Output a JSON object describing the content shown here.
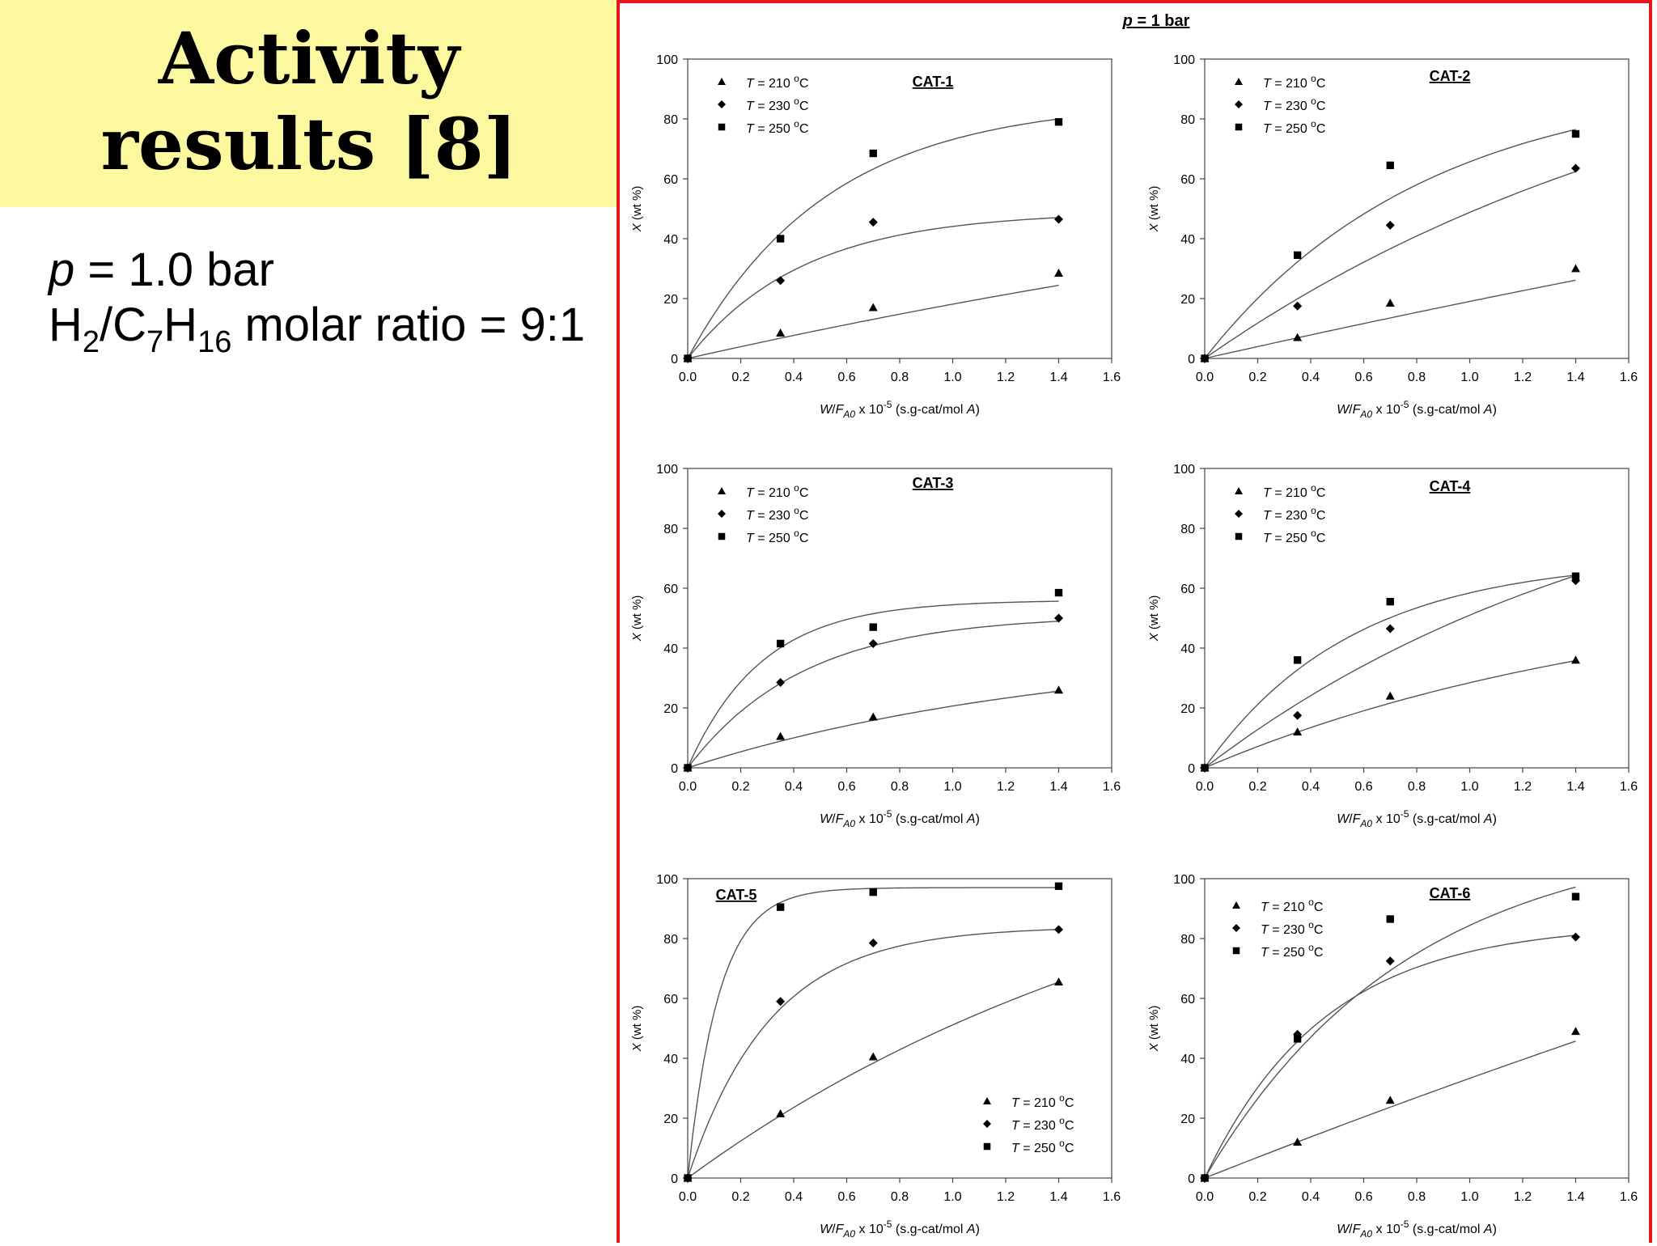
{
  "slide": {
    "title_line1": "Activity",
    "title_line2": "results [8]",
    "param_p_symbol": "p",
    "param_p_rest": " = 1.0 bar",
    "ratio_h": "H",
    "ratio_h_sub": "2",
    "ratio_c": "/C",
    "ratio_c_sub": "7",
    "ratio_h2": "H",
    "ratio_h2_sub": "16",
    "ratio_rest": " molar ratio = 9:1"
  },
  "figure": {
    "heading_symbol": "p",
    "heading_rest": " = 1 bar"
  },
  "colors": {
    "frame": "#e4161b",
    "title_bg": "#fbf8a0",
    "ink": "#000000",
    "axis": "#444444"
  },
  "chart_data": [
    {
      "type": "scatter",
      "title": "CAT-1",
      "xlabel": "W/FA0 x 10-5 (s.g-cat/mol A)",
      "ylabel": "X (wt %)",
      "xlim": [
        0,
        1.6
      ],
      "ylim": [
        0,
        100
      ],
      "xticks": [
        "0.0",
        "0.2",
        "0.4",
        "0.6",
        "0.8",
        "1.0",
        "1.2",
        "1.4",
        "1.6"
      ],
      "yticks": [
        "0",
        "20",
        "40",
        "60",
        "80",
        "100"
      ],
      "legend": "top-left",
      "x": [
        0,
        0.35,
        0.7,
        1.4
      ],
      "series": [
        {
          "name": "T = 210 °C",
          "marker": "triangle",
          "values": [
            0,
            8.5,
            17,
            28.5
          ],
          "fit_k": 0.2,
          "fit_max": 100
        },
        {
          "name": "T = 230 °C",
          "marker": "diamond",
          "values": [
            0,
            26,
            45.5,
            46.5
          ],
          "fit_k": 2.3,
          "fit_max": 49
        },
        {
          "name": "T = 250 °C",
          "marker": "square",
          "values": [
            0,
            40,
            68.5,
            79
          ],
          "fit_k": 1.9,
          "fit_max": 86
        }
      ]
    },
    {
      "type": "scatter",
      "title": "CAT-2",
      "xlabel": "W/FA0 x 10-5 (s.g-cat/mol A)",
      "ylabel": "X (wt %)",
      "xlim": [
        0,
        1.6
      ],
      "ylim": [
        0,
        100
      ],
      "xticks": [
        "0.0",
        "0.2",
        "0.4",
        "0.6",
        "0.8",
        "1.0",
        "1.2",
        "1.4",
        "1.6"
      ],
      "yticks": [
        "0",
        "20",
        "40",
        "60",
        "80",
        "100"
      ],
      "legend": "top-left",
      "x": [
        0,
        0.35,
        0.7,
        1.4
      ],
      "series": [
        {
          "name": "T = 210 °C",
          "marker": "triangle",
          "values": [
            0,
            7,
            18.5,
            30
          ],
          "fit_k": 0.1,
          "fit_max": 200
        },
        {
          "name": "T = 230 °C",
          "marker": "diamond",
          "values": [
            0,
            17.5,
            44.5,
            63.5
          ],
          "fit_k": 0.5,
          "fit_max": 124
        },
        {
          "name": "T = 250 °C",
          "marker": "square",
          "values": [
            0,
            34.5,
            64.5,
            75
          ],
          "fit_k": 1.2,
          "fit_max": 94
        }
      ]
    },
    {
      "type": "scatter",
      "title": "CAT-3",
      "xlabel": "W/FA0 x 10-5 (s.g-cat/mol A)",
      "ylabel": "X (wt %)",
      "xlim": [
        0,
        1.6
      ],
      "ylim": [
        0,
        100
      ],
      "xticks": [
        "0.0",
        "0.2",
        "0.4",
        "0.6",
        "0.8",
        "1.0",
        "1.2",
        "1.4",
        "1.6"
      ],
      "yticks": [
        "0",
        "20",
        "40",
        "60",
        "80",
        "100"
      ],
      "legend": "top-left",
      "x": [
        0,
        0.35,
        0.7,
        1.4
      ],
      "series": [
        {
          "name": "T = 210 °C",
          "marker": "triangle",
          "values": [
            0,
            10.5,
            17,
            26
          ],
          "fit_k": 0.7,
          "fit_max": 41
        },
        {
          "name": "T = 230 °C",
          "marker": "diamond",
          "values": [
            0,
            28.5,
            41.5,
            50
          ],
          "fit_k": 2.3,
          "fit_max": 51
        },
        {
          "name": "T = 250 °C",
          "marker": "square",
          "values": [
            0,
            41.5,
            47,
            58.5
          ],
          "fit_k": 3.6,
          "fit_max": 56
        }
      ]
    },
    {
      "type": "scatter",
      "title": "CAT-4",
      "xlabel": "W/FA0 x 10-5 (s.g-cat/mol A)",
      "ylabel": "X (wt %)",
      "xlim": [
        0,
        1.6
      ],
      "ylim": [
        0,
        100
      ],
      "xticks": [
        "0.0",
        "0.2",
        "0.4",
        "0.6",
        "0.8",
        "1.0",
        "1.2",
        "1.4",
        "1.6"
      ],
      "yticks": [
        "0",
        "20",
        "40",
        "60",
        "80",
        "100"
      ],
      "legend": "top-left",
      "x": [
        0,
        0.35,
        0.7,
        1.4
      ],
      "series": [
        {
          "name": "T = 210 °C",
          "marker": "triangle",
          "values": [
            0,
            12,
            24,
            36
          ],
          "fit_k": 0.6,
          "fit_max": 63
        },
        {
          "name": "T = 230 °C",
          "marker": "diamond",
          "values": [
            0,
            17.5,
            46.5,
            62.5
          ],
          "fit_k": 0.6,
          "fit_max": 113
        },
        {
          "name": "T = 250 °C",
          "marker": "square",
          "values": [
            0,
            36,
            55.5,
            64
          ],
          "fit_k": 1.8,
          "fit_max": 70
        }
      ]
    },
    {
      "type": "scatter",
      "title": "CAT-5",
      "xlabel": "W/FA0 x 10-5 (s.g-cat/mol A)",
      "ylabel": "X (wt %)",
      "xlim": [
        0,
        1.6
      ],
      "ylim": [
        0,
        100
      ],
      "xticks": [
        "0.0",
        "0.2",
        "0.4",
        "0.6",
        "0.8",
        "1.0",
        "1.2",
        "1.4",
        "1.6"
      ],
      "yticks": [
        "0",
        "20",
        "40",
        "60",
        "80",
        "100"
      ],
      "legend": "bottom-right",
      "x": [
        0,
        0.35,
        0.7,
        1.4
      ],
      "series": [
        {
          "name": "T = 210 °C",
          "marker": "triangle",
          "values": [
            0,
            21.5,
            40.5,
            65.5
          ],
          "fit_k": 0.5,
          "fit_max": 130
        },
        {
          "name": "T = 230 °C",
          "marker": "diamond",
          "values": [
            0,
            59,
            78.5,
            83
          ],
          "fit_k": 3.2,
          "fit_max": 84
        },
        {
          "name": "T = 250 °C",
          "marker": "square",
          "values": [
            0,
            90.5,
            95.5,
            97.5
          ],
          "fit_k": 8.5,
          "fit_max": 97
        }
      ]
    },
    {
      "type": "scatter",
      "title": "CAT-6",
      "xlabel": "W/FA0 x 10-5 (s.g-cat/mol A)",
      "ylabel": "X (wt %)",
      "xlim": [
        0,
        1.6
      ],
      "ylim": [
        0,
        100
      ],
      "xticks": [
        "0.0",
        "0.2",
        "0.4",
        "0.6",
        "0.8",
        "1.0",
        "1.2",
        "1.4",
        "1.6"
      ],
      "yticks": [
        "0",
        "20",
        "40",
        "60",
        "80",
        "100"
      ],
      "legend": "top-left",
      "x": [
        0,
        0.35,
        0.7,
        1.4
      ],
      "series": [
        {
          "name": "T = 210 °C",
          "marker": "triangle",
          "values": [
            0,
            12,
            26,
            49
          ],
          "fit_k": 0.1,
          "fit_max": 350
        },
        {
          "name": "T = 230 °C",
          "marker": "diamond",
          "values": [
            0,
            48,
            72.5,
            80.5
          ],
          "fit_k": 2.2,
          "fit_max": 85
        },
        {
          "name": "T = 250 °C",
          "marker": "square",
          "values": [
            0,
            46.5,
            86.5,
            94
          ],
          "fit_k": 1.3,
          "fit_max": 116
        }
      ]
    }
  ]
}
